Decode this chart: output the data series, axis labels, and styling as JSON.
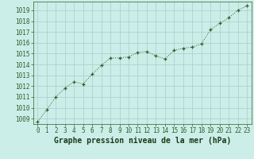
{
  "x": [
    0,
    1,
    2,
    3,
    4,
    5,
    6,
    7,
    8,
    9,
    10,
    11,
    12,
    13,
    14,
    15,
    16,
    17,
    18,
    19,
    20,
    21,
    22,
    23
  ],
  "y": [
    1008.7,
    1009.8,
    1011.0,
    1011.8,
    1012.4,
    1012.2,
    1013.1,
    1013.9,
    1014.6,
    1014.6,
    1014.7,
    1015.1,
    1015.2,
    1014.8,
    1014.5,
    1015.3,
    1015.5,
    1015.6,
    1015.9,
    1017.2,
    1017.8,
    1018.3,
    1019.0,
    1019.4
  ],
  "line_color": "#2d5e2d",
  "marker": "+",
  "marker_color": "#2d5e2d",
  "bg_color": "#cceee8",
  "grid_color": "#aacccc",
  "title": "Graphe pression niveau de la mer (hPa)",
  "ylim": [
    1008.5,
    1019.8
  ],
  "xlim": [
    -0.5,
    23.5
  ],
  "yticks": [
    1009,
    1010,
    1011,
    1012,
    1013,
    1014,
    1015,
    1016,
    1017,
    1018,
    1019
  ],
  "xticks": [
    0,
    1,
    2,
    3,
    4,
    5,
    6,
    7,
    8,
    9,
    10,
    11,
    12,
    13,
    14,
    15,
    16,
    17,
    18,
    19,
    20,
    21,
    22,
    23
  ],
  "tick_color": "#2d5e2d",
  "title_color": "#1a3a1a",
  "title_fontsize": 7.0,
  "tick_fontsize": 5.5,
  "linewidth": 0.7,
  "markersize": 3.5,
  "markeredgewidth": 0.9
}
